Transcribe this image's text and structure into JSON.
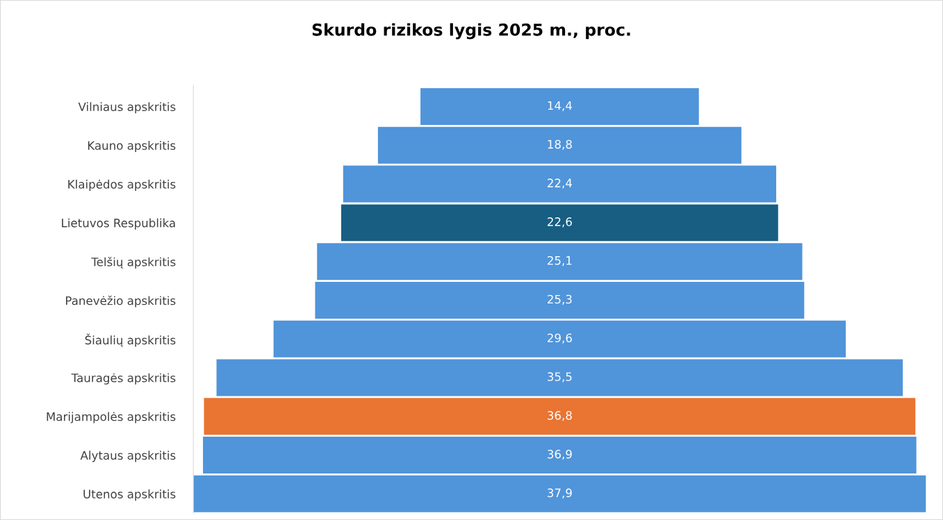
{
  "chart_data": {
    "type": "other",
    "title": "Skurdo rizikos lygis 2025 m., proc.",
    "categories": [
      "Vilniaus apskritis",
      "Kauno apskritis",
      "Klaipėdos apskritis",
      "Lietuvos Respublika",
      "Telšių apskritis",
      "Panevėžio apskritis",
      "Šiaulių apskritis",
      "Tauragės apskritis",
      "Marijampolės apskritis",
      "Alytaus apskritis",
      "Utenos apskritis"
    ],
    "values": [
      14.4,
      18.8,
      22.4,
      22.6,
      25.1,
      25.3,
      29.6,
      35.5,
      36.8,
      36.9,
      37.9
    ],
    "value_labels": [
      "14,4",
      "18,8",
      "22,4",
      "22,6",
      "25,1",
      "25,3",
      "29,6",
      "35,5",
      "36,8",
      "36,9",
      "37,9"
    ],
    "colors": [
      "#5094da",
      "#5094da",
      "#5094da",
      "#175e82",
      "#5094da",
      "#5094da",
      "#5094da",
      "#5094da",
      "#ea7432",
      "#5094da",
      "#5094da"
    ]
  }
}
